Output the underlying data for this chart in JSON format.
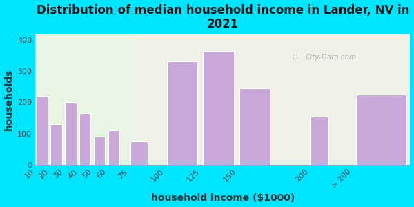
{
  "title": "Distribution of median household income in Lander, NV in\n2021",
  "xlabel": "household income ($1000)",
  "ylabel": "households",
  "categories": [
    "10",
    "20",
    "30",
    "40",
    "50",
    "60",
    "75",
    "100",
    "125",
    "150",
    "200",
    "> 200"
  ],
  "bar_lefts": [
    10,
    20,
    30,
    40,
    50,
    60,
    75,
    100,
    125,
    150,
    200,
    230
  ],
  "bar_widths": [
    9,
    9,
    9,
    9,
    9,
    9,
    14,
    24,
    24,
    24,
    14,
    40
  ],
  "values": [
    220,
    130,
    200,
    165,
    90,
    110,
    75,
    330,
    365,
    245,
    155,
    225
  ],
  "bar_color": "#C8A8D8",
  "bar_edge_color": "#FFFFFF",
  "background_outer": "#00E5FF",
  "background_inner_left": "#E8F5E2",
  "background_inner_right": "#F0F0E8",
  "xlim": [
    10,
    270
  ],
  "ylim": [
    0,
    420
  ],
  "yticks": [
    0,
    100,
    200,
    300,
    400
  ],
  "xtick_positions": [
    10,
    20,
    30,
    40,
    50,
    60,
    75,
    100,
    125,
    150,
    200,
    230
  ],
  "title_fontsize": 12,
  "axis_label_fontsize": 10,
  "tick_fontsize": 8,
  "watermark": "City-Data.com"
}
